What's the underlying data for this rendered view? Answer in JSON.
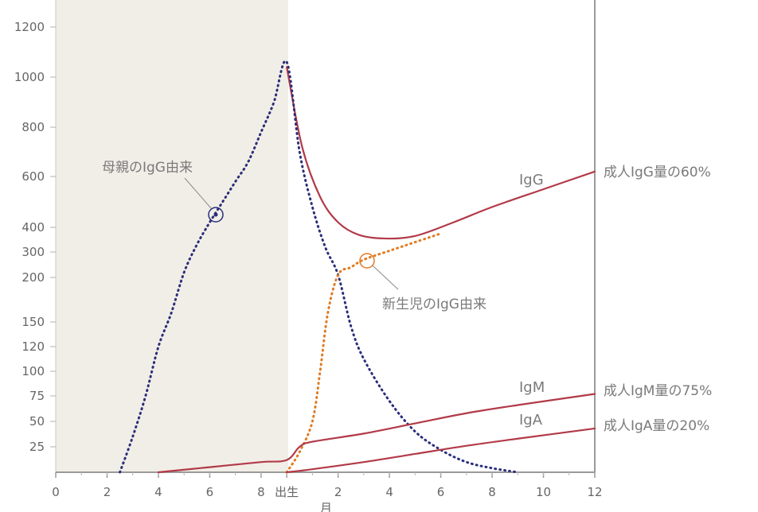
{
  "chart_data": {
    "type": "line",
    "x_ticks": [
      "0",
      "2",
      "4",
      "6",
      "8",
      "出生",
      "2",
      "4",
      "6",
      "8",
      "10",
      "12"
    ],
    "xlabel": "月",
    "y_ticks": [
      "25",
      "50",
      "75",
      "100",
      "120",
      "150",
      "200",
      "300",
      "400",
      "600",
      "800",
      "1000",
      "1200"
    ],
    "shaded_region": {
      "from_month": 0,
      "to_month": 9,
      "color": "#f1eee7"
    },
    "series": [
      {
        "name": "IgG",
        "style": "solid",
        "color": "#b23a48",
        "points": [
          [
            9,
            1040
          ],
          [
            9.6,
            720
          ],
          [
            10.3,
            520
          ],
          [
            11,
            420
          ],
          [
            11.8,
            370
          ],
          [
            12.8,
            355
          ],
          [
            14,
            365
          ],
          [
            15.5,
            420
          ],
          [
            17,
            480
          ],
          [
            19,
            550
          ],
          [
            21,
            620
          ]
        ]
      },
      {
        "name": "母親のIgG由来",
        "style": "dotted",
        "color": "#2a2e7a",
        "points": [
          [
            2.5,
            0
          ],
          [
            3,
            35
          ],
          [
            3.5,
            75
          ],
          [
            4,
            120
          ],
          [
            4.5,
            160
          ],
          [
            5,
            220
          ],
          [
            5.5,
            330
          ],
          [
            6,
            420
          ],
          [
            6.5,
            500
          ],
          [
            7,
            580
          ],
          [
            7.5,
            660
          ],
          [
            8,
            780
          ],
          [
            8.5,
            900
          ],
          [
            9,
            1060
          ],
          [
            9.5,
            700
          ],
          [
            10,
            480
          ],
          [
            10.5,
            320
          ],
          [
            11,
            210
          ],
          [
            11.5,
            145
          ],
          [
            12,
            110
          ],
          [
            13,
            70
          ],
          [
            14,
            40
          ],
          [
            15,
            22
          ],
          [
            16,
            10
          ],
          [
            17,
            4
          ],
          [
            18,
            0
          ]
        ]
      },
      {
        "name": "新生児のIgG由来",
        "style": "dotted",
        "color": "#e07b22",
        "points": [
          [
            9,
            0
          ],
          [
            9.5,
            20
          ],
          [
            10,
            50
          ],
          [
            10.3,
            100
          ],
          [
            10.6,
            160
          ],
          [
            11,
            210
          ],
          [
            11.5,
            240
          ],
          [
            12,
            270
          ],
          [
            13,
            305
          ],
          [
            14,
            340
          ],
          [
            15,
            375
          ]
        ]
      },
      {
        "name": "IgM",
        "style": "solid",
        "color": "#b23a48",
        "points": [
          [
            4,
            0
          ],
          [
            6,
            5
          ],
          [
            8,
            10
          ],
          [
            9,
            12
          ],
          [
            9.5,
            25
          ],
          [
            10,
            30
          ],
          [
            12,
            38
          ],
          [
            14,
            48
          ],
          [
            16,
            58
          ],
          [
            18,
            66
          ],
          [
            21,
            77
          ]
        ]
      },
      {
        "name": "IgA",
        "style": "solid",
        "color": "#b23a48",
        "points": [
          [
            9,
            0
          ],
          [
            10,
            3
          ],
          [
            12,
            10
          ],
          [
            14,
            18
          ],
          [
            16,
            26
          ],
          [
            18,
            33
          ],
          [
            21,
            43
          ]
        ]
      }
    ],
    "series_labels": {
      "igg": "IgG",
      "igm": "IgM",
      "iga": "IgA"
    },
    "annotations": {
      "maternal": "母親のIgG由来",
      "newborn": "新生児のIgG由来",
      "adult_igg": "成人IgG量の60%",
      "adult_igm": "成人IgM量の75%",
      "adult_iga": "成人IgA量の20%"
    }
  }
}
